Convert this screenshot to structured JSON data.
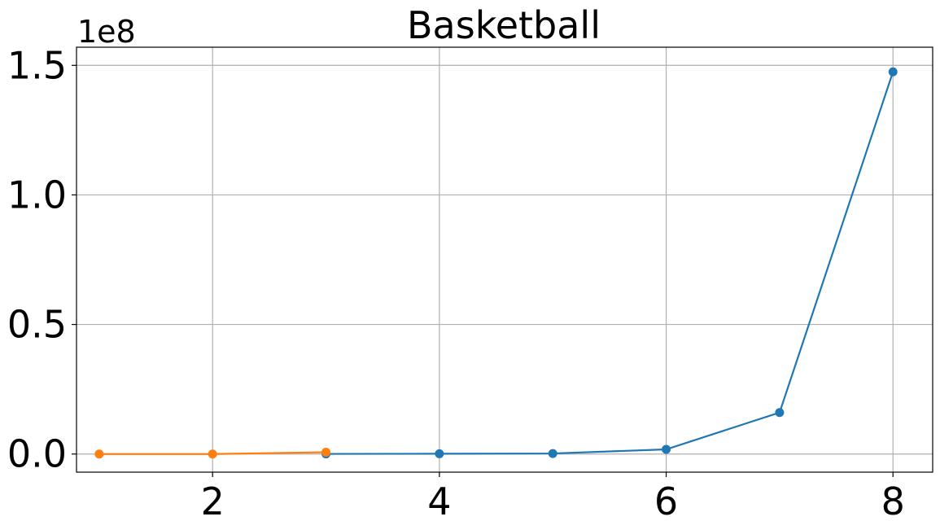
{
  "chart_data": {
    "type": "line",
    "title": "Basketball",
    "xlabel": "",
    "ylabel": "",
    "y_offset_label": "1e8",
    "xlim": [
      0.8,
      8.35
    ],
    "ylim": [
      -0.07,
      1.57
    ],
    "x_ticks": [
      2,
      4,
      6,
      8
    ],
    "y_ticks": [
      0.0,
      0.5,
      1.0,
      1.5
    ],
    "y_tick_labels": [
      "0.0",
      "0.5",
      "1.0",
      "1.5"
    ],
    "x_tick_labels": [
      "2",
      "4",
      "6",
      "8"
    ],
    "grid": true,
    "series": [
      {
        "color": "#1f77b4",
        "x": [
          3,
          4,
          5,
          6,
          7,
          8
        ],
        "y": [
          0.0005,
          0.001,
          0.002,
          0.018,
          0.16,
          1.475
        ]
      },
      {
        "color": "#ff7f0e",
        "x": [
          1,
          2,
          3
        ],
        "y": [
          0.0,
          0.0,
          0.007
        ]
      }
    ]
  }
}
